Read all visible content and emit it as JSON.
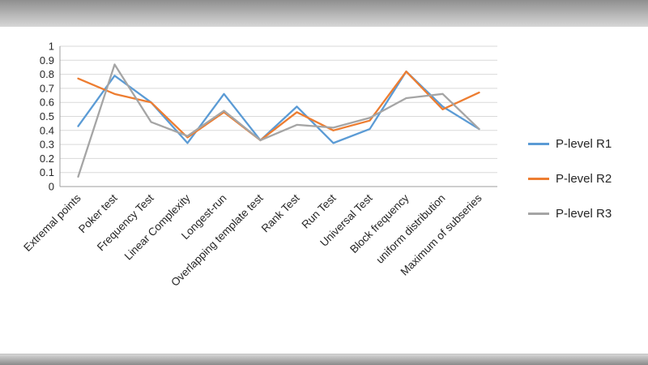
{
  "window": {
    "top_band_color": "#8f8f8f",
    "bottom_band_color": "#8a8a8a",
    "chart_background": "#ffffff"
  },
  "chart_data": {
    "type": "line",
    "title": "",
    "xlabel": "",
    "ylabel": "",
    "ylim": [
      0,
      1
    ],
    "grid": true,
    "legend_position": "right",
    "categories": [
      "Extremal points",
      "Poker test",
      "Frequency Test",
      "Linear Complexity",
      "Longest-run",
      "Overlapping template test",
      "Rank Test",
      "Run Test",
      "Universal Test",
      "Block frequency",
      "uniform distribution",
      "Maximum of subseries"
    ],
    "yticks": [
      {
        "value": 1,
        "label": "1"
      },
      {
        "value": 0.9,
        "label": "0.9"
      },
      {
        "value": 0.8,
        "label": "0.8"
      },
      {
        "value": 0.7,
        "label": "0.7"
      },
      {
        "value": 0.6,
        "label": "0.6"
      },
      {
        "value": 0.5,
        "label": "0.5"
      },
      {
        "value": 0.4,
        "label": "0.4"
      },
      {
        "value": 0.3,
        "label": "0.3"
      },
      {
        "value": 0.2,
        "label": "0.2"
      },
      {
        "value": 0.1,
        "label": "0.1"
      },
      {
        "value": 0,
        "label": "0"
      }
    ],
    "series": [
      {
        "name": "P-level R1",
        "color": "#5B9BD5",
        "values": [
          0.43,
          0.79,
          0.6,
          0.31,
          0.66,
          0.33,
          0.57,
          0.31,
          0.41,
          0.82,
          0.57,
          0.41
        ]
      },
      {
        "name": "P-level R2",
        "color": "#ED7D31",
        "values": [
          0.77,
          0.66,
          0.6,
          0.35,
          0.53,
          0.33,
          0.53,
          0.4,
          0.47,
          0.82,
          0.55,
          0.67
        ]
      },
      {
        "name": "P-level R3",
        "color": "#A5A5A5",
        "values": [
          0.07,
          0.87,
          0.46,
          0.36,
          0.54,
          0.33,
          0.44,
          0.42,
          0.49,
          0.63,
          0.66,
          0.41
        ]
      }
    ]
  }
}
